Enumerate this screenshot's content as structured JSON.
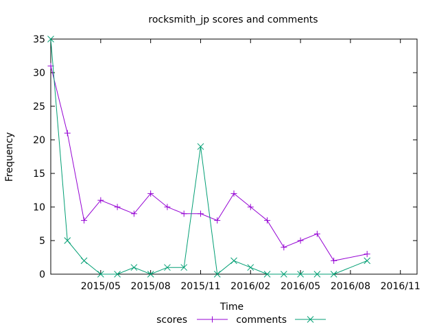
{
  "chart_data": {
    "type": "line",
    "title": "rocksmith_jp scores and comments",
    "xlabel": "Time",
    "ylabel": "Frequency",
    "ylim": [
      0,
      35
    ],
    "yticks": [
      "0",
      "5",
      "10",
      "15",
      "20",
      "25",
      "30",
      "35"
    ],
    "xlim": [
      "2015-02",
      "2016-12"
    ],
    "xticks": [
      "2015/05",
      "2015/08",
      "2015/11",
      "2016/02",
      "2016/05",
      "2016/08",
      "2016/11"
    ],
    "grid": false,
    "legend": "bottom-center",
    "series": [
      {
        "name": "scores",
        "color": "#9400d3",
        "marker": "plus",
        "x": [
          "2015-02",
          "2015-03",
          "2015-04",
          "2015-05",
          "2015-06",
          "2015-07",
          "2015-08",
          "2015-09",
          "2015-10",
          "2015-11",
          "2015-12",
          "2016-01",
          "2016-02",
          "2016-03",
          "2016-04",
          "2016-05",
          "2016-06",
          "2016-07",
          "2016-09"
        ],
        "values": [
          31,
          21,
          8,
          11,
          10,
          9,
          12,
          10,
          9,
          9,
          8,
          12,
          10,
          8,
          4,
          5,
          6,
          2,
          3
        ]
      },
      {
        "name": "comments",
        "color": "#009e73",
        "marker": "cross",
        "x": [
          "2015-02",
          "2015-03",
          "2015-04",
          "2015-05",
          "2015-06",
          "2015-07",
          "2015-08",
          "2015-09",
          "2015-10",
          "2015-11",
          "2015-12",
          "2016-01",
          "2016-02",
          "2016-03",
          "2016-04",
          "2016-05",
          "2016-06",
          "2016-07",
          "2016-09"
        ],
        "values": [
          35,
          5,
          2,
          0,
          0,
          1,
          0,
          1,
          1,
          19,
          0,
          2,
          1,
          0,
          0,
          0,
          0,
          0,
          2
        ]
      }
    ]
  }
}
